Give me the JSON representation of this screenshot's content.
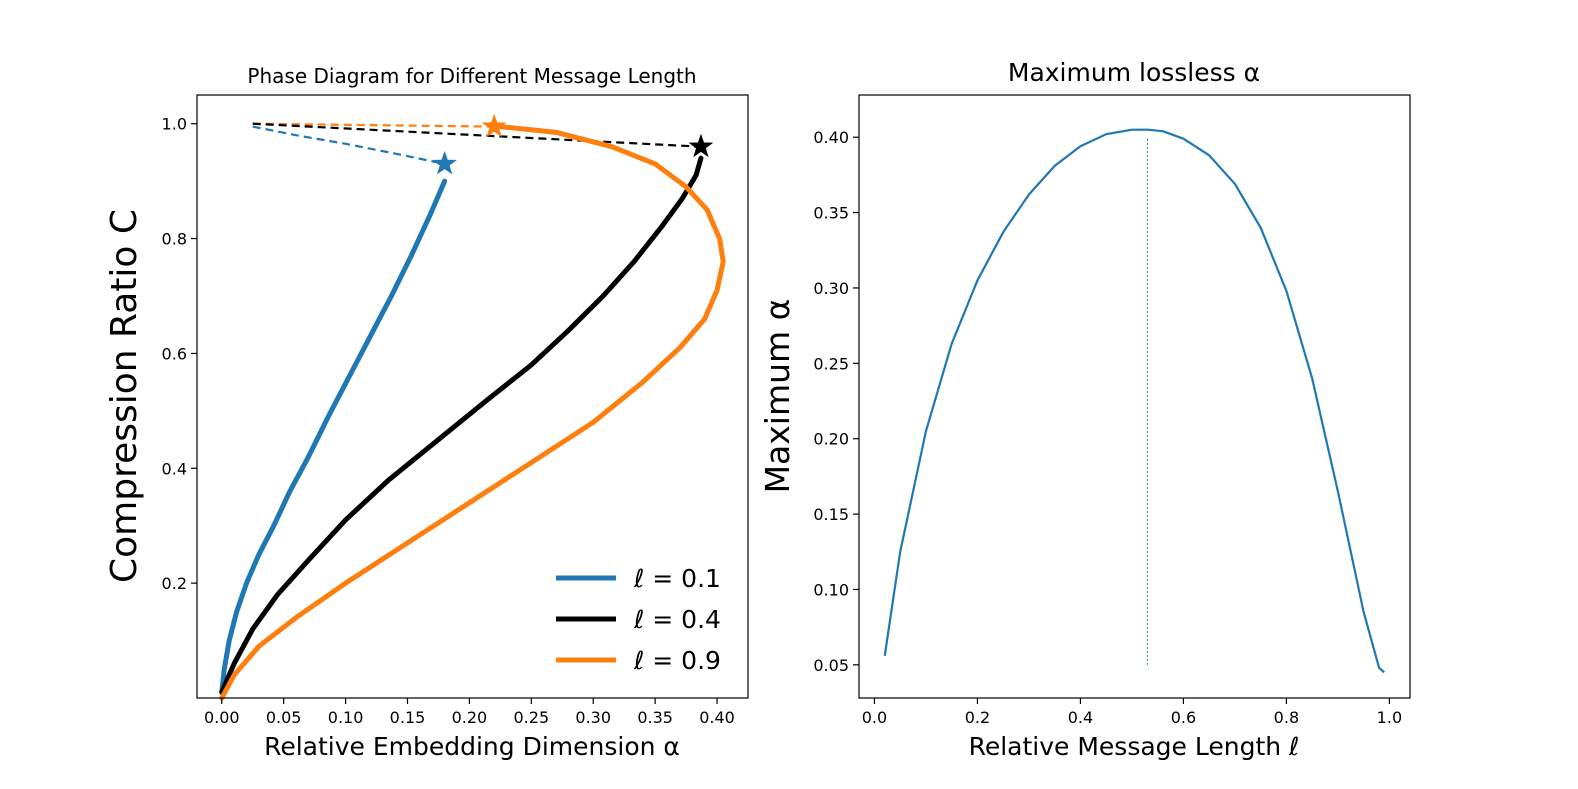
{
  "chart_data": [
    {
      "type": "line",
      "title": "Phase Diagram for Different Message Length",
      "xlabel": "Relative Embedding Dimension α",
      "ylabel": "Compression Ratio C",
      "xlim": [
        -0.02,
        0.425
      ],
      "ylim": [
        0.0,
        1.05
      ],
      "xticks": [
        0.0,
        0.05,
        0.1,
        0.15,
        0.2,
        0.25,
        0.3,
        0.35,
        0.4
      ],
      "xtick_labels": [
        "0.00",
        "0.05",
        "0.10",
        "0.15",
        "0.20",
        "0.25",
        "0.30",
        "0.35",
        "0.40"
      ],
      "yticks": [
        0.2,
        0.4,
        0.6,
        0.8,
        1.0
      ],
      "ytick_labels": [
        "0.2",
        "0.4",
        "0.6",
        "0.8",
        "1.0"
      ],
      "grid": false,
      "legend_position": "bottom-right",
      "series": [
        {
          "name": "ℓ = 0.1",
          "color": "#1f77b4",
          "style": "solid",
          "x": [
            0.0,
            0.002,
            0.006,
            0.012,
            0.02,
            0.03,
            0.042,
            0.055,
            0.07,
            0.086,
            0.103,
            0.12,
            0.137,
            0.153,
            0.168,
            0.18
          ],
          "y": [
            0.01,
            0.05,
            0.1,
            0.15,
            0.2,
            0.25,
            0.3,
            0.36,
            0.42,
            0.49,
            0.56,
            0.63,
            0.7,
            0.77,
            0.84,
            0.9
          ]
        },
        {
          "name": "ℓ = 0.4",
          "color": "#000000",
          "style": "solid",
          "x": [
            0.0,
            0.01,
            0.025,
            0.045,
            0.07,
            0.1,
            0.135,
            0.175,
            0.215,
            0.25,
            0.28,
            0.308,
            0.333,
            0.355,
            0.372,
            0.383,
            0.387
          ],
          "y": [
            0.01,
            0.06,
            0.12,
            0.18,
            0.24,
            0.31,
            0.38,
            0.45,
            0.52,
            0.58,
            0.64,
            0.7,
            0.76,
            0.82,
            0.87,
            0.91,
            0.94
          ]
        },
        {
          "name": "ℓ = 0.9",
          "color": "#ff7f0e",
          "style": "solid",
          "x": [
            0.0,
            0.01,
            0.03,
            0.06,
            0.1,
            0.15,
            0.2,
            0.25,
            0.3,
            0.34,
            0.37,
            0.39,
            0.4,
            0.405,
            0.402,
            0.392,
            0.375,
            0.35,
            0.315,
            0.27,
            0.225
          ],
          "y": [
            0.0,
            0.04,
            0.09,
            0.14,
            0.2,
            0.27,
            0.34,
            0.41,
            0.48,
            0.55,
            0.61,
            0.66,
            0.71,
            0.76,
            0.8,
            0.85,
            0.89,
            0.93,
            0.96,
            0.985,
            0.995
          ]
        }
      ],
      "dashed_extensions": [
        {
          "color": "#1f77b4",
          "x": [
            0.025,
            0.06,
            0.1,
            0.14,
            0.18
          ],
          "y": [
            0.995,
            0.98,
            0.965,
            0.948,
            0.93
          ]
        },
        {
          "color": "#ff7f0e",
          "x": [
            0.025,
            0.22
          ],
          "y": [
            1.0,
            0.995
          ]
        },
        {
          "color": "#000000",
          "x": [
            0.025,
            0.387
          ],
          "y": [
            1.0,
            0.96
          ]
        }
      ],
      "star_markers": [
        {
          "color": "#1f77b4",
          "x": 0.18,
          "y": 0.93
        },
        {
          "color": "#ff7f0e",
          "x": 0.22,
          "y": 0.995
        },
        {
          "color": "#000000",
          "x": 0.387,
          "y": 0.96
        }
      ]
    },
    {
      "type": "line",
      "title": "Maximum lossless α",
      "xlabel": "Relative Message Length ℓ",
      "ylabel": "Maximum α",
      "xlim": [
        -0.03,
        1.04
      ],
      "ylim": [
        0.028,
        0.428
      ],
      "xticks": [
        0.0,
        0.2,
        0.4,
        0.6,
        0.8,
        1.0
      ],
      "xtick_labels": [
        "0.0",
        "0.2",
        "0.4",
        "0.6",
        "0.8",
        "1.0"
      ],
      "yticks": [
        0.05,
        0.1,
        0.15,
        0.2,
        0.25,
        0.3,
        0.35,
        0.4
      ],
      "ytick_labels": [
        "0.05",
        "0.10",
        "0.15",
        "0.20",
        "0.25",
        "0.30",
        "0.35",
        "0.40"
      ],
      "grid": false,
      "series": [
        {
          "color": "#1f77b4",
          "style": "solid",
          "x": [
            0.02,
            0.05,
            0.1,
            0.15,
            0.2,
            0.25,
            0.3,
            0.35,
            0.4,
            0.45,
            0.5,
            0.53,
            0.56,
            0.6,
            0.65,
            0.7,
            0.75,
            0.8,
            0.85,
            0.9,
            0.95,
            0.98,
            0.99
          ],
          "y": [
            0.056,
            0.125,
            0.205,
            0.263,
            0.305,
            0.337,
            0.362,
            0.381,
            0.394,
            0.402,
            0.405,
            0.405,
            0.404,
            0.399,
            0.388,
            0.369,
            0.34,
            0.298,
            0.24,
            0.165,
            0.085,
            0.048,
            0.045
          ]
        }
      ],
      "vertical_marker": {
        "x": 0.53,
        "y_from": 0.05,
        "y_to": 0.4,
        "color": "#1f77b4",
        "style": "dotted"
      }
    }
  ]
}
